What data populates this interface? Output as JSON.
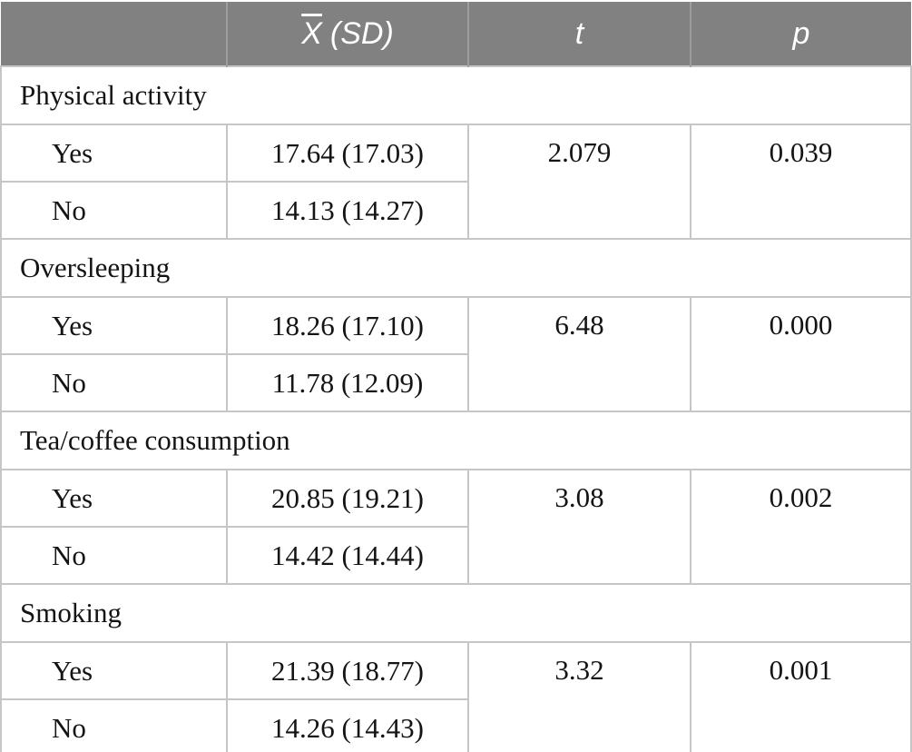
{
  "page": {
    "background_color": "#ffffff"
  },
  "table": {
    "header": {
      "variable_label": "",
      "mean_symbol": "X",
      "mean_suffix": "(SD)",
      "t_label": "t",
      "p_label": "p",
      "background_color": "#818181",
      "divider_color": "#9d9d9d",
      "text_color": "#ffffff"
    },
    "style": {
      "border_color": "#c6c6c6",
      "body_text_color": "#141414"
    },
    "sections": [
      {
        "label": "Physical activity",
        "t": "2.079",
        "p": "0.039",
        "rows": [
          {
            "level": "Yes",
            "mean_sd": "17.64 (17.03)"
          },
          {
            "level": "No",
            "mean_sd": "14.13 (14.27)"
          }
        ]
      },
      {
        "label": "Oversleeping",
        "t": "6.48",
        "p": "0.000",
        "rows": [
          {
            "level": "Yes",
            "mean_sd": "18.26 (17.10)"
          },
          {
            "level": "No",
            "mean_sd": "11.78 (12.09)"
          }
        ]
      },
      {
        "label": "Tea/coffee consumption",
        "t": "3.08",
        "p": "0.002",
        "rows": [
          {
            "level": "Yes",
            "mean_sd": "20.85 (19.21)"
          },
          {
            "level": "No",
            "mean_sd": "14.42 (14.44)"
          }
        ]
      },
      {
        "label": "Smoking",
        "t": "3.32",
        "p": "0.001",
        "rows": [
          {
            "level": "Yes",
            "mean_sd": "21.39 (18.77)"
          },
          {
            "level": "No",
            "mean_sd": "14.26 (14.43)"
          }
        ]
      }
    ]
  }
}
